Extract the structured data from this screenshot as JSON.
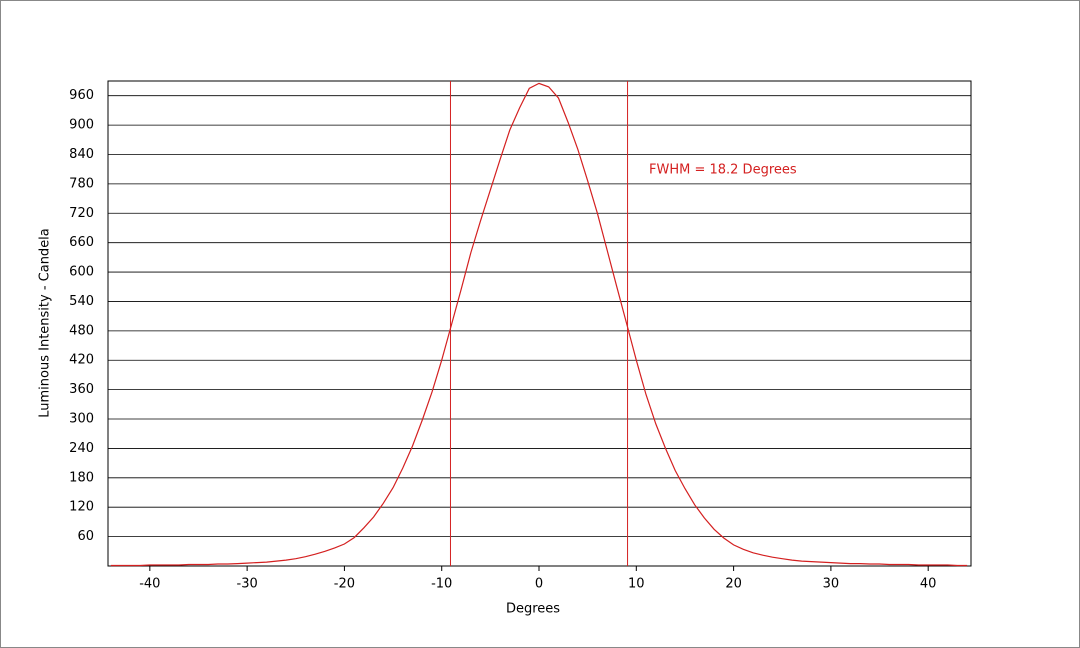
{
  "chart_data": {
    "type": "line",
    "x_label": "Degrees",
    "y_label": "Luminous Intensity - Candela",
    "annotation": "FWHM = 18.2 Degrees",
    "vlines": [
      -9.1,
      9.1
    ],
    "x": [
      -44,
      -43,
      -42,
      -41,
      -40,
      -39,
      -38,
      -37,
      -36,
      -35,
      -34,
      -33,
      -32,
      -31,
      -30,
      -29,
      -28,
      -27,
      -26,
      -25,
      -24,
      -23,
      -22,
      -21,
      -20,
      -19,
      -18,
      -17,
      -16,
      -15,
      -14,
      -13,
      -12,
      -11,
      -10,
      -9,
      -8,
      -7,
      -6,
      -5,
      -4,
      -3,
      -2,
      -1,
      0,
      1,
      2,
      3,
      4,
      5,
      6,
      7,
      8,
      9,
      10,
      11,
      12,
      13,
      14,
      15,
      16,
      17,
      18,
      19,
      20,
      21,
      22,
      23,
      24,
      25,
      26,
      27,
      28,
      29,
      30,
      31,
      32,
      33,
      34,
      35,
      36,
      37,
      38,
      39,
      40,
      41,
      42,
      43,
      44
    ],
    "series": [
      {
        "color": "#d42020",
        "values": [
          1,
          1,
          1,
          1,
          2,
          2,
          2,
          2,
          3,
          3,
          3,
          4,
          4,
          5,
          6,
          7,
          8,
          10,
          12,
          15,
          19,
          24,
          30,
          37,
          45,
          58,
          78,
          100,
          128,
          160,
          200,
          245,
          298,
          355,
          420,
          492,
          565,
          640,
          705,
          768,
          830,
          890,
          935,
          975,
          985,
          978,
          955,
          905,
          850,
          786,
          720,
          645,
          570,
          495,
          420,
          350,
          290,
          240,
          195,
          158,
          125,
          98,
          75,
          57,
          43,
          34,
          27,
          22,
          18,
          15,
          12,
          10,
          9,
          8,
          7,
          6,
          5,
          5,
          4,
          4,
          3,
          3,
          3,
          2,
          2,
          2,
          2,
          1,
          1
        ]
      }
    ],
    "xlim": [
      -44.3,
      44.4
    ],
    "ylim": [
      0,
      990
    ],
    "xticks": [
      -40,
      -30,
      -20,
      -10,
      0,
      10,
      20,
      30,
      40
    ],
    "yticks": [
      60,
      120,
      180,
      240,
      300,
      360,
      420,
      480,
      540,
      600,
      660,
      720,
      780,
      840,
      900,
      960
    ],
    "grid": true
  }
}
